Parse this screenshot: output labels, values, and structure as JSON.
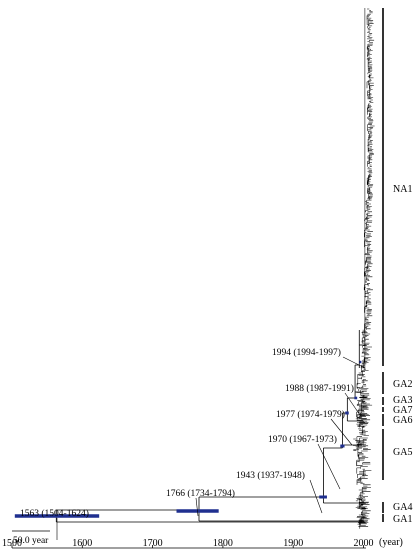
{
  "figure": {
    "type": "time-scaled phylogenetic tree",
    "line_color": "#000000",
    "hpd_bar_color": "#1f2f8f",
    "axis": {
      "ticks": [
        "1500",
        "1600",
        "1700",
        "1800",
        "1900",
        "2000"
      ],
      "unit": "(year)"
    },
    "scale_bar": {
      "label": "50.0 year"
    },
    "nodes": [
      {
        "year": 1563,
        "hpd": [
          1504,
          1624
        ],
        "label": "1563 (1504-1624)"
      },
      {
        "year": 1766,
        "hpd": [
          1734,
          1794
        ],
        "label": "1766 (1734-1794)"
      },
      {
        "year": 1943,
        "hpd": [
          1937,
          1948
        ],
        "label": "1943 (1937-1948)"
      },
      {
        "year": 1970,
        "hpd": [
          1967,
          1973
        ],
        "label": "1970 (1967-1973)"
      },
      {
        "year": 1977,
        "hpd": [
          1974,
          1979
        ],
        "label": "1977 (1974-1979)"
      },
      {
        "year": 1988,
        "hpd": [
          1987,
          1991
        ],
        "label": "1988 (1987-1991)"
      },
      {
        "year": 1994,
        "hpd": [
          1994,
          1997
        ],
        "label": "1994 (1994-1997)"
      }
    ],
    "clades": [
      "NA1",
      "GA2",
      "GA3",
      "GA7",
      "GA6",
      "GA5",
      "GA4",
      "GA1"
    ]
  }
}
